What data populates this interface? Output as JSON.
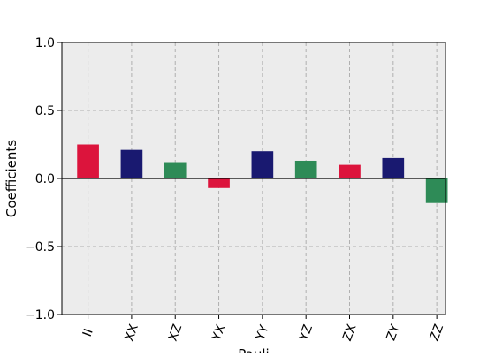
{
  "chart_data": {
    "type": "bar",
    "title": "",
    "xlabel": "Pauli",
    "ylabel": "Coefficients",
    "ylim": [
      -1.0,
      1.0
    ],
    "yticks": [
      -1.0,
      -0.5,
      0.0,
      0.5,
      1.0
    ],
    "ytick_labels": [
      "−1.0",
      "−0.5",
      "0.0",
      "0.5",
      "1.0"
    ],
    "grid": true,
    "categories": [
      "II",
      "XX",
      "XZ",
      "YX",
      "YY",
      "YZ",
      "ZX",
      "ZY",
      "ZZ"
    ],
    "values": [
      0.25,
      0.21,
      0.12,
      -0.07,
      0.2,
      0.13,
      0.1,
      0.15,
      -0.18
    ],
    "bar_colors": [
      "#dc143c",
      "#191970",
      "#2e8b57",
      "#dc143c",
      "#191970",
      "#2e8b57",
      "#dc143c",
      "#191970",
      "#2e8b57"
    ],
    "plot_background": "#ececec",
    "grid_color": "#b0b0b0"
  }
}
